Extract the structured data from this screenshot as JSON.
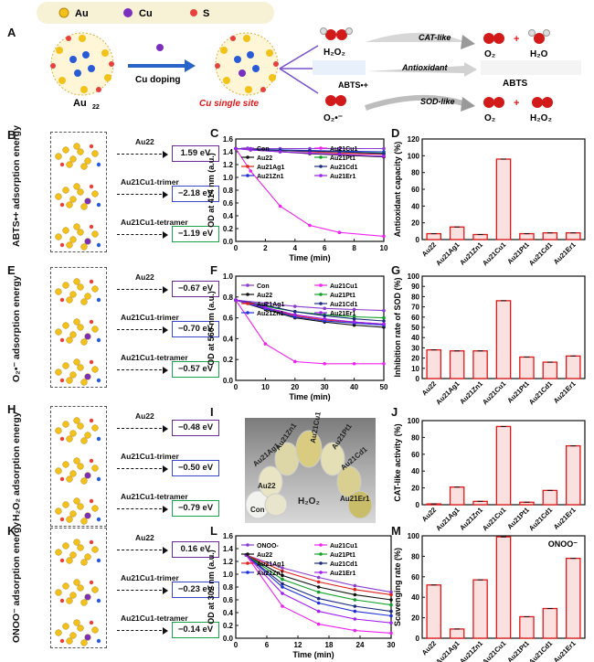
{
  "panel_letters": {
    "A": "A",
    "B": "B",
    "C": "C",
    "D": "D",
    "E": "E",
    "F": "F",
    "G": "G",
    "H": "H",
    "I": "I",
    "J": "J",
    "K": "K",
    "L": "L",
    "M": "M"
  },
  "legend_top": {
    "au": "Au",
    "cu": "Cu",
    "s": "S"
  },
  "panelA": {
    "au22": "Au",
    "au22_sub": "22",
    "doping": "Cu doping",
    "single_site": "Cu  single site",
    "h2o2": "H₂O₂",
    "cat_like": "CAT-like",
    "o2": "O₂",
    "h2o": "H₂O",
    "abts_radical": "ABTS•+",
    "antioxidant": "Antioxidant",
    "abts": "ABTS",
    "superoxide": "O₂•⁻",
    "sod_like": "SOD-like",
    "o2b": "O₂",
    "h2o2b": "H₂O₂"
  },
  "adsorption": {
    "B": {
      "ylabel": "ABTS•+ adsorption energy",
      "rows": [
        {
          "label": "Au22",
          "value": "1.59 eV"
        },
        {
          "label": "Au21Cu1-trimer",
          "value": "−2.18 eV"
        },
        {
          "label": "Au21Cu1-tetramer",
          "value": "−1.19 eV"
        }
      ]
    },
    "E": {
      "ylabel": "O₂•⁻ adsorption energy",
      "rows": [
        {
          "label": "Au22",
          "value": "−0.67 eV"
        },
        {
          "label": "Au21Cu1-trimer",
          "value": "−0.70 eV"
        },
        {
          "label": "Au21Cu1-tetramer",
          "value": "−0.57 eV"
        }
      ]
    },
    "H": {
      "ylabel": "H₂O₂ adsorption energy",
      "rows": [
        {
          "label": "Au22",
          "value": "−0.48 eV"
        },
        {
          "label": "Au21Cu1-trimer",
          "value": "−0.50 eV"
        },
        {
          "label": "Au21Cu1-tetramer",
          "value": "−0.79 eV"
        }
      ]
    },
    "K": {
      "ylabel": "ONOO⁻ adsorption energy",
      "rows": [
        {
          "label": "Au22",
          "value": "0.16 eV"
        },
        {
          "label": "Au21Cu1-trimer",
          "value": "−0.23 eV"
        },
        {
          "label": "Au21Cu1-tetramer",
          "value": "−0.14 eV"
        }
      ]
    }
  },
  "photo": {
    "labels": [
      "Au21Cu1",
      "Au21Zn1",
      "Au21Pt1",
      "Au21Ag1",
      "Au21Cd1",
      "Au22",
      "Au21Er1",
      "Con",
      "H₂O₂"
    ]
  },
  "colors": {
    "Con": "#8a3ccf",
    "Au22": "#111111",
    "Au21Ag1": "#e0201a",
    "Au21Zn1": "#2030d8",
    "Au21Cu1": "#ee22ee",
    "Au21Pt1": "#13a02a",
    "Au21Cd1": "#1a2a80",
    "Au21Er1": "#a020f0",
    "ONOO-": "#8a3ccf",
    "bar": "#e01818",
    "bar_fill": "#fbe0e0",
    "purple": "#6a2b9a",
    "blue": "#3c46c8",
    "green": "#1aa34a"
  },
  "chart_data": [
    {
      "id": "C",
      "type": "line",
      "xlabel": "Time (min)",
      "ylabel": "OD at 414 nm (a.u.)",
      "xlim": [
        0,
        10
      ],
      "ylim": [
        0,
        1.6
      ],
      "xticks": [
        0,
        2,
        4,
        6,
        8,
        10
      ],
      "yticks": [
        0.0,
        0.2,
        0.4,
        0.6,
        0.8,
        1.0,
        1.2,
        1.4,
        1.6
      ],
      "x": [
        0,
        1,
        3,
        5,
        7,
        10
      ],
      "legend": [
        "Con",
        "Au22",
        "Au21Ag1",
        "Au21Zn1",
        "Au21Cu1",
        "Au21Pt1",
        "Au21Cd1",
        "Au21Er1"
      ],
      "series": [
        {
          "name": "Con",
          "values": [
            1.45,
            1.45,
            1.45,
            1.45,
            1.45,
            1.45
          ]
        },
        {
          "name": "Au22",
          "values": [
            1.45,
            1.43,
            1.4,
            1.37,
            1.35,
            1.32
          ]
        },
        {
          "name": "Au21Ag1",
          "values": [
            1.45,
            1.44,
            1.42,
            1.4,
            1.38,
            1.36
          ]
        },
        {
          "name": "Au21Zn1",
          "values": [
            1.45,
            1.44,
            1.43,
            1.42,
            1.41,
            1.4
          ]
        },
        {
          "name": "Au21Cu1",
          "values": [
            1.45,
            1.1,
            0.55,
            0.25,
            0.14,
            0.08
          ]
        },
        {
          "name": "Au21Pt1",
          "values": [
            1.45,
            1.44,
            1.42,
            1.41,
            1.4,
            1.38
          ]
        },
        {
          "name": "Au21Cd1",
          "values": [
            1.45,
            1.44,
            1.42,
            1.41,
            1.4,
            1.37
          ]
        },
        {
          "name": "Au21Er1",
          "values": [
            1.45,
            1.43,
            1.4,
            1.38,
            1.36,
            1.33
          ]
        }
      ]
    },
    {
      "id": "D",
      "type": "bar",
      "ylabel": "Antioxidant capacity (%)",
      "ylim": [
        0,
        120
      ],
      "yticks": [
        0,
        20,
        40,
        60,
        80,
        100,
        120
      ],
      "categories": [
        "Au22",
        "Au21Ag1",
        "Au21Zn1",
        "Au21Cu1",
        "Au21Pt1",
        "Au21Cd1",
        "Au21Er1"
      ],
      "values": [
        7,
        15,
        6,
        96,
        7,
        8,
        8
      ]
    },
    {
      "id": "F",
      "type": "line",
      "xlabel": "Time (min)",
      "ylabel": "OD at 560 nm (a.u.)",
      "xlim": [
        0,
        50
      ],
      "ylim": [
        0,
        1.0
      ],
      "xticks": [
        0,
        10,
        20,
        30,
        40,
        50
      ],
      "yticks": [
        0.0,
        0.2,
        0.4,
        0.6,
        0.8,
        1.0
      ],
      "x": [
        0,
        10,
        20,
        30,
        40,
        50
      ],
      "legend": [
        "Con",
        "Au22",
        "Au21Ag1",
        "Au21Zn1",
        "Au21Cu1",
        "Au21Pt1",
        "Au21Cd1",
        "Au21Er1"
      ],
      "series": [
        {
          "name": "Con",
          "values": [
            0.77,
            0.74,
            0.71,
            0.69,
            0.68,
            0.67
          ]
        },
        {
          "name": "Au22",
          "values": [
            0.77,
            0.68,
            0.6,
            0.56,
            0.53,
            0.51
          ]
        },
        {
          "name": "Au21Ag1",
          "values": [
            0.77,
            0.69,
            0.62,
            0.58,
            0.56,
            0.54
          ]
        },
        {
          "name": "Au21Zn1",
          "values": [
            0.77,
            0.69,
            0.61,
            0.57,
            0.55,
            0.53
          ]
        },
        {
          "name": "Au21Cu1",
          "values": [
            0.77,
            0.35,
            0.18,
            0.16,
            0.16,
            0.16
          ]
        },
        {
          "name": "Au21Pt1",
          "values": [
            0.77,
            0.71,
            0.66,
            0.63,
            0.61,
            0.6
          ]
        },
        {
          "name": "Au21Cd1",
          "values": [
            0.77,
            0.72,
            0.66,
            0.62,
            0.59,
            0.57
          ]
        },
        {
          "name": "Au21Er1",
          "values": [
            0.77,
            0.7,
            0.63,
            0.59,
            0.56,
            0.54
          ]
        }
      ]
    },
    {
      "id": "G",
      "type": "bar",
      "ylabel": "Inhibition rate of SOD (%)",
      "ylim": [
        0,
        100
      ],
      "yticks": [
        0,
        10,
        20,
        30,
        40,
        50,
        60,
        70,
        80,
        90,
        100
      ],
      "categories": [
        "Au22",
        "Au21Ag1",
        "Au21Zn1",
        "Au21Cu1",
        "Au21Pt1",
        "Au21Cd1",
        "Au21Er1"
      ],
      "values": [
        28,
        27,
        27,
        76,
        21,
        16,
        22
      ]
    },
    {
      "id": "J",
      "type": "bar",
      "ylabel": "CAT-like activity (%)",
      "ylim": [
        0,
        100
      ],
      "yticks": [
        0,
        20,
        40,
        60,
        80,
        100
      ],
      "categories": [
        "Au22",
        "Au21Ag1",
        "Au21Zn1",
        "Au21Cu1",
        "Au21Pt1",
        "Au21Cd1",
        "Au21Er1"
      ],
      "values": [
        1,
        21,
        4,
        93,
        3,
        17,
        70
      ]
    },
    {
      "id": "L",
      "type": "line",
      "xlabel": "Time (min)",
      "ylabel": "OD at 302 nm (a.u.)",
      "xlim": [
        0,
        30
      ],
      "ylim": [
        0,
        1.6
      ],
      "xticks": [
        0,
        6,
        12,
        18,
        24,
        30
      ],
      "yticks": [
        0.0,
        0.2,
        0.4,
        0.6,
        0.8,
        1.0,
        1.2,
        1.4,
        1.6
      ],
      "x": [
        2,
        9,
        16,
        23,
        30
      ],
      "legend": [
        "ONOO-",
        "Au22",
        "Au21Ag1",
        "Au21Zn1",
        "Au21Cu1",
        "Au21Pt1",
        "Au21Cd1",
        "Au21Er1"
      ],
      "series": [
        {
          "name": "ONOO-",
          "values": [
            1.3,
            1.1,
            0.95,
            0.82,
            0.72
          ]
        },
        {
          "name": "Au22",
          "values": [
            1.3,
            0.98,
            0.8,
            0.68,
            0.6
          ]
        },
        {
          "name": "Au21Ag1",
          "values": [
            1.3,
            1.05,
            0.88,
            0.76,
            0.68
          ]
        },
        {
          "name": "Au21Zn1",
          "values": [
            1.3,
            0.8,
            0.55,
            0.42,
            0.35
          ]
        },
        {
          "name": "Au21Cu1",
          "values": [
            1.3,
            0.5,
            0.22,
            0.12,
            0.08
          ]
        },
        {
          "name": "Au21Pt1",
          "values": [
            1.3,
            0.92,
            0.72,
            0.6,
            0.52
          ]
        },
        {
          "name": "Au21Cd1",
          "values": [
            1.3,
            0.85,
            0.62,
            0.5,
            0.42
          ]
        },
        {
          "name": "Au21Er1",
          "values": [
            1.3,
            0.7,
            0.42,
            0.3,
            0.24
          ]
        }
      ]
    },
    {
      "id": "M",
      "type": "bar",
      "ylabel": "Scavenging rate (%)",
      "ylim": [
        0,
        100
      ],
      "yticks": [
        0,
        20,
        40,
        60,
        80,
        100
      ],
      "annotation": "ONOO⁻",
      "categories": [
        "Au22",
        "Au21Ag1",
        "Au21Zn1",
        "Au21Cu1",
        "Au21Pt1",
        "Au21Cd1",
        "Au21Er1"
      ],
      "values": [
        52,
        9,
        57,
        99,
        21,
        29,
        78
      ]
    }
  ]
}
